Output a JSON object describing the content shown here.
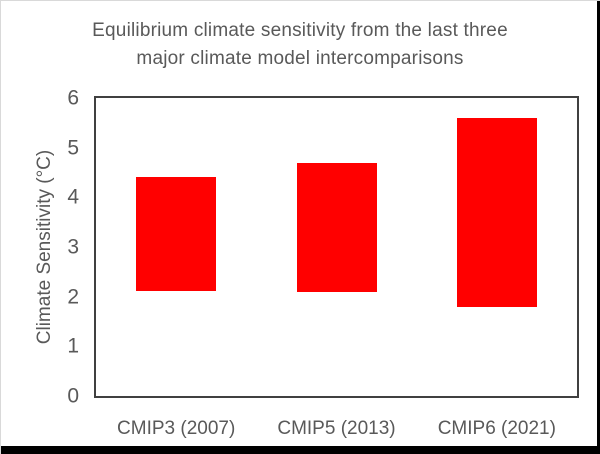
{
  "chart": {
    "title_line1": "Equilibrium climate sensitivity from the last three",
    "title_line2": "major climate model intercomparisons",
    "ylabel": "Climate Sensitivity (°C)"
  },
  "chart_data": {
    "type": "bar",
    "subtype": "floating-range-bars",
    "title": "Equilibrium climate sensitivity from the last three major climate model intercomparisons",
    "xlabel": "",
    "ylabel": "Climate Sensitivity (°C)",
    "categories": [
      "CMIP3 (2007)",
      "CMIP5 (2013)",
      "CMIP6 (2021)"
    ],
    "series": [
      {
        "name": "Climate sensitivity range (°C)",
        "ranges": [
          {
            "low": 2.1,
            "high": 4.4
          },
          {
            "low": 2.1,
            "high": 4.7
          },
          {
            "low": 1.8,
            "high": 5.6
          }
        ]
      }
    ],
    "ylim": [
      0,
      6
    ],
    "y_ticks": [
      0,
      1,
      2,
      3,
      4,
      5,
      6
    ],
    "grid": false,
    "legend": false,
    "bar_color": "#ff0000",
    "text_color": "#595959",
    "axis_color": "#404040",
    "plot_background": "#ffffff"
  }
}
